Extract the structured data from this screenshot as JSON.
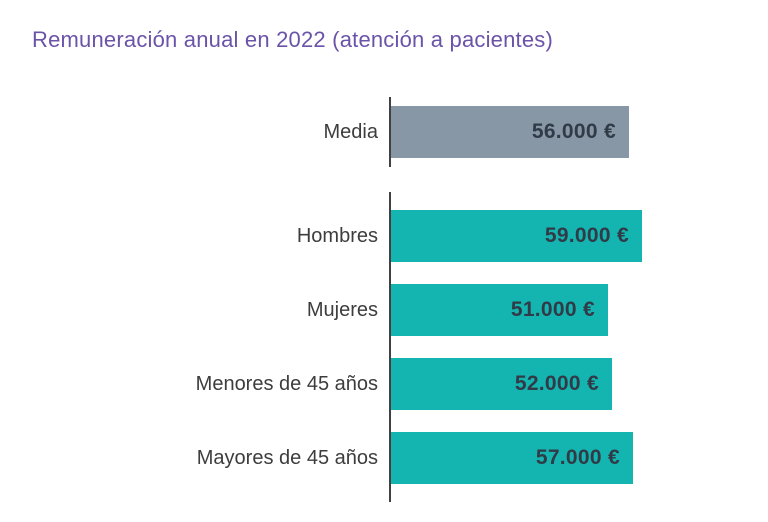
{
  "title": "Remuneración anual en 2022 (atención a pacientes)",
  "colors": {
    "title": "#6b53a8",
    "media_bar": "#8797a6",
    "group_bar": "#14b5b0",
    "value_text": "#313b47",
    "label_text": "#3d3d3d",
    "axis": "#414141",
    "background": "#ffffff"
  },
  "chart_data": {
    "type": "bar",
    "orientation": "horizontal",
    "title": "Remuneración anual en 2022 (atención a pacientes)",
    "unit": "€",
    "xlim": [
      0,
      60000
    ],
    "grid": false,
    "legend": false,
    "value_labels_inside_bars": true,
    "sections": [
      {
        "name": "media",
        "rows": [
          {
            "label": "Media",
            "value": 56000,
            "value_label": "56.000 €"
          }
        ]
      },
      {
        "name": "groups",
        "rows": [
          {
            "label": "Hombres",
            "value": 59000,
            "value_label": "59.000 €"
          },
          {
            "label": "Mujeres",
            "value": 51000,
            "value_label": "51.000 €"
          },
          {
            "label": "Menores de 45 años",
            "value": 52000,
            "value_label": "52.000 €"
          },
          {
            "label": "Mayores de 45 años",
            "value": 57000,
            "value_label": "57.000 €"
          }
        ]
      }
    ]
  }
}
